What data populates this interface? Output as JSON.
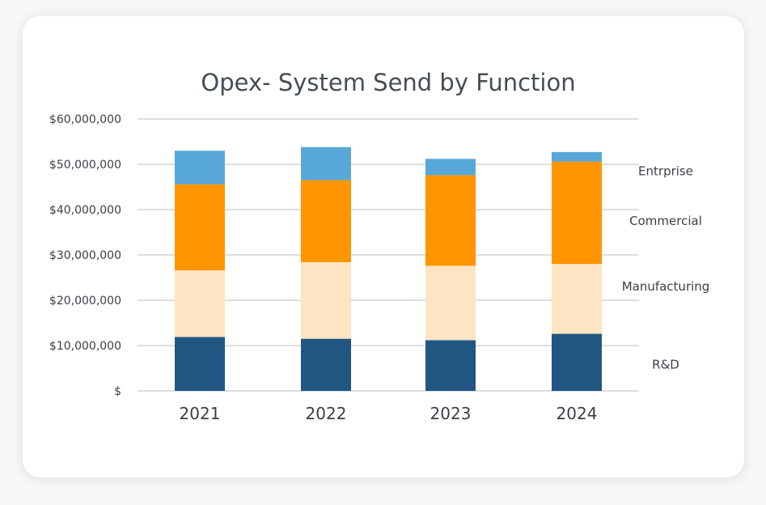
{
  "chart_data": {
    "type": "bar",
    "stacked": true,
    "title": "Opex- System Send by Function",
    "xlabel": "",
    "ylabel": "",
    "categories": [
      "2021",
      "2022",
      "2023",
      "2024"
    ],
    "ylim": [
      0,
      60000000
    ],
    "yticks": [
      {
        "value": 0,
        "label": "$"
      },
      {
        "value": 10000000,
        "label": "$10,000,000"
      },
      {
        "value": 20000000,
        "label": "$20,000,000"
      },
      {
        "value": 30000000,
        "label": "$30,000,000"
      },
      {
        "value": 40000000,
        "label": "$40,000,000"
      },
      {
        "value": 50000000,
        "label": "$50,000,000"
      },
      {
        "value": 60000000,
        "label": "$60,000,000"
      }
    ],
    "grid": true,
    "series": [
      {
        "name": "R&D",
        "color": "#215682",
        "values": [
          11900000,
          11500000,
          11200000,
          12600000
        ]
      },
      {
        "name": "Manufacturing",
        "color": "#fde5c4",
        "values": [
          14700000,
          16900000,
          16400000,
          15400000
        ]
      },
      {
        "name": "Commercial",
        "color": "#ff9500",
        "values": [
          19000000,
          18100000,
          20000000,
          22600000
        ]
      },
      {
        "name": "Entrprise",
        "color": "#57a8d7",
        "values": [
          7400000,
          7300000,
          3600000,
          2100000
        ]
      }
    ],
    "series_label_values": [
      {
        "name": "Entrprise",
        "value": 48500000
      },
      {
        "name": "Commercial",
        "value": 37500000
      },
      {
        "name": "Manufacturing",
        "value": 23000000
      },
      {
        "name": "R&D",
        "value": 5800000
      }
    ]
  }
}
